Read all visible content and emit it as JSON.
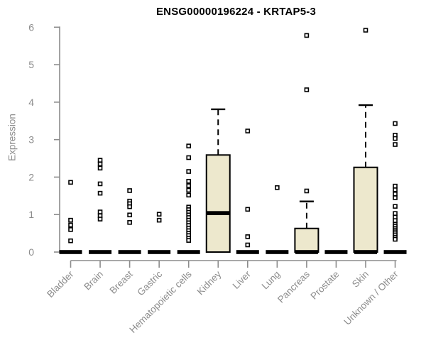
{
  "chart_data": {
    "type": "boxplot",
    "title": "ENSG00000196224 - KRTAP5-3",
    "ylabel": "Expression",
    "xlabel": "",
    "ylim": [
      0,
      6
    ],
    "yticks": [
      0,
      1,
      2,
      3,
      4,
      5,
      6
    ],
    "grid": false,
    "legend": "none",
    "box_fill_color": "#ede8cd",
    "box_line_color": "#000000",
    "axis_color": "#8c8c8c",
    "categories": [
      "Bladder",
      "Brain",
      "Breast",
      "Gastric",
      "Hematopoietic cells",
      "Kidney",
      "Liver",
      "Lung",
      "Pancreas",
      "Prostate",
      "Skin",
      "Unknown / Other"
    ],
    "series": [
      {
        "name": "Bladder",
        "q1": 0,
        "median": 0,
        "q3": 0,
        "whisker_low": 0,
        "whisker_high": 0,
        "points": [
          1.86,
          0.85,
          0.72,
          0.6,
          0.3
        ]
      },
      {
        "name": "Brain",
        "q1": 0,
        "median": 0,
        "q3": 0,
        "whisker_low": 0,
        "whisker_high": 0,
        "points": [
          2.45,
          2.35,
          2.24,
          1.82,
          1.57,
          1.07,
          0.97,
          0.88
        ]
      },
      {
        "name": "Breast",
        "q1": 0,
        "median": 0,
        "q3": 0,
        "whisker_low": 0,
        "whisker_high": 0,
        "points": [
          1.64,
          1.36,
          1.29,
          1.21,
          0.99,
          0.79
        ]
      },
      {
        "name": "Gastric",
        "q1": 0,
        "median": 0,
        "q3": 0,
        "whisker_low": 0,
        "whisker_high": 0,
        "points": [
          1.01,
          0.85
        ]
      },
      {
        "name": "Hematopoietic cells",
        "q1": 0,
        "median": 0,
        "q3": 0,
        "whisker_low": 0,
        "whisker_high": 0,
        "points": [
          2.83,
          2.52,
          2.15,
          1.89,
          1.77,
          1.65,
          1.52,
          1.2,
          1.13,
          1.06,
          0.99,
          0.92,
          0.85,
          0.78,
          0.71,
          0.64,
          0.57,
          0.5,
          0.44,
          0.37,
          0.31
        ]
      },
      {
        "name": "Kidney",
        "q1": 0,
        "median": 1.04,
        "q3": 2.59,
        "whisker_low": 0,
        "whisker_high": 3.81,
        "points": []
      },
      {
        "name": "Liver",
        "q1": 0,
        "median": 0,
        "q3": 0,
        "whisker_low": 0,
        "whisker_high": 0,
        "points": [
          3.23,
          1.14,
          0.41,
          0.19
        ]
      },
      {
        "name": "Lung",
        "q1": 0,
        "median": 0,
        "q3": 0,
        "whisker_low": 0,
        "whisker_high": 0,
        "points": [
          1.72
        ]
      },
      {
        "name": "Pancreas",
        "q1": 0,
        "median": 0,
        "q3": 0.63,
        "whisker_low": 0,
        "whisker_high": 1.35,
        "points": [
          5.78,
          4.33,
          1.63
        ]
      },
      {
        "name": "Prostate",
        "q1": 0,
        "median": 0,
        "q3": 0,
        "whisker_low": 0,
        "whisker_high": 0,
        "points": []
      },
      {
        "name": "Skin",
        "q1": 0,
        "median": 0,
        "q3": 2.26,
        "whisker_low": 0,
        "whisker_high": 3.92,
        "points": [
          5.92
        ]
      },
      {
        "name": "Unknown / Other",
        "q1": 0,
        "median": 0,
        "q3": 0,
        "whisker_low": 0,
        "whisker_high": 0,
        "points": [
          3.43,
          3.12,
          3.03,
          2.87,
          1.76,
          1.66,
          1.55,
          1.45,
          1.22,
          1.03,
          0.93,
          0.84,
          0.74,
          0.69,
          0.64,
          0.59,
          0.54,
          0.49,
          0.44,
          0.39,
          0.34
        ]
      }
    ]
  }
}
